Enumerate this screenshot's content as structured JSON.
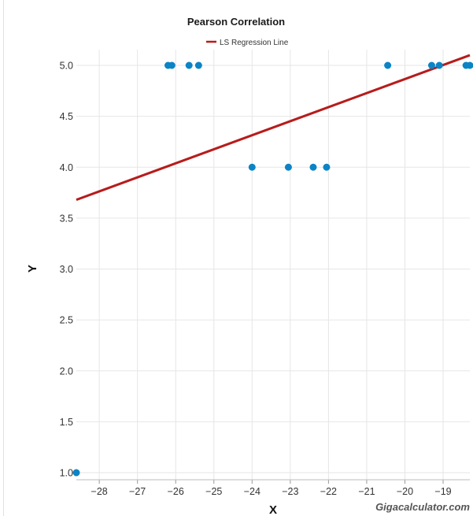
{
  "chart_data": {
    "type": "scatter",
    "title": "Pearson Correlation",
    "xlabel": "X",
    "ylabel": "Y",
    "xlim": [
      -28.6,
      -18.3
    ],
    "ylim": [
      1.0,
      5.0
    ],
    "x_ticks": [
      "−28",
      "−27",
      "−26",
      "−25",
      "−24",
      "−23",
      "−22",
      "−21",
      "−20",
      "−19"
    ],
    "y_ticks": [
      "1.0",
      "1.5",
      "2.0",
      "2.5",
      "3.0",
      "3.5",
      "4.0",
      "4.5",
      "5.0"
    ],
    "grid": true,
    "legend_position": "top-center",
    "series": [
      {
        "name": "LS Regression Line",
        "kind": "line",
        "color": "#b71c1c",
        "x": [
          -28.6,
          -18.3
        ],
        "y": [
          3.68,
          5.1
        ]
      },
      {
        "kind": "scatter",
        "color": "#0b84c6",
        "points": [
          {
            "x": -28.6,
            "y": 1.0
          },
          {
            "x": -26.2,
            "y": 5.0
          },
          {
            "x": -26.1,
            "y": 5.0
          },
          {
            "x": -25.65,
            "y": 5.0
          },
          {
            "x": -25.4,
            "y": 5.0
          },
          {
            "x": -24.0,
            "y": 4.0
          },
          {
            "x": -23.05,
            "y": 4.0
          },
          {
            "x": -22.4,
            "y": 4.0
          },
          {
            "x": -22.05,
            "y": 4.0
          },
          {
            "x": -20.45,
            "y": 5.0
          },
          {
            "x": -19.3,
            "y": 5.0
          },
          {
            "x": -19.1,
            "y": 5.0
          },
          {
            "x": -18.4,
            "y": 5.0
          },
          {
            "x": -18.3,
            "y": 5.0
          }
        ]
      }
    ]
  },
  "credit": "Gigacalculator.com"
}
